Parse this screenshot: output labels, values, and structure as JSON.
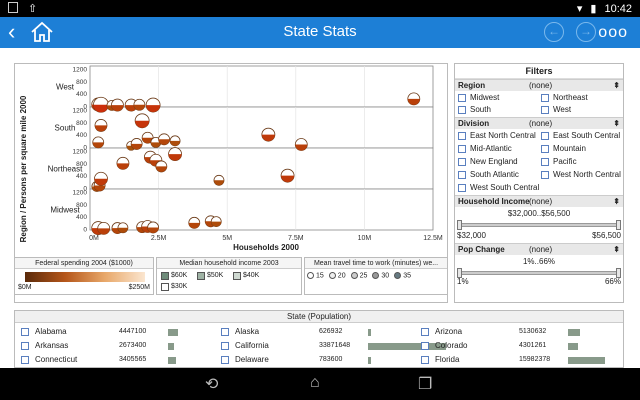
{
  "status": {
    "time": "10:42"
  },
  "appbar": {
    "title": "State Stats",
    "back": "‹",
    "prev": "←",
    "next": "→",
    "more": "ooo"
  },
  "chart": {
    "ylabel": "Region / Persons per square mile 2000",
    "xlabel": "Households 2000",
    "regions": [
      "West",
      "South",
      "Northeast",
      "Midwest"
    ],
    "yticks": [
      "1200",
      "800",
      "400",
      "0"
    ],
    "xticks": [
      "0M",
      "2.5M",
      "5M",
      "7.5M",
      "10M",
      "12.5M"
    ]
  },
  "legends": {
    "spending": {
      "title": "Federal spending 2004 ($1000)",
      "min": "$0M",
      "max": "$250M"
    },
    "income": {
      "title": "Median household income 2003",
      "items": [
        "$60K",
        "$50K",
        "$40K",
        "$30K"
      ]
    },
    "travel": {
      "title": "Mean travel time to work (minutes) we...",
      "items": [
        "15",
        "20",
        "25",
        "30",
        "35"
      ]
    }
  },
  "filters": {
    "title": "Filters",
    "region": {
      "label": "Region",
      "value": "(none)",
      "items": [
        "Midwest",
        "Northeast",
        "South",
        "West"
      ]
    },
    "division": {
      "label": "Division",
      "value": "(none)",
      "items": [
        "East North Central",
        "East South Central",
        "Mid-Atlantic",
        "Mountain",
        "New England",
        "Pacific",
        "South Atlantic",
        "West North Central",
        "West South Central"
      ]
    },
    "income": {
      "label": "Household Income",
      "value": "(none)",
      "range": "$32,000..$56,500",
      "min": "$32,000",
      "max": "$56,500"
    },
    "popchange": {
      "label": "Pop Change",
      "value": "(none)",
      "range": "1%..66%",
      "min": "1%",
      "max": "66%"
    }
  },
  "states": {
    "title": "State (Population)",
    "rows": [
      [
        {
          "name": "Alabama",
          "value": "4447100",
          "frac": 0.13
        },
        {
          "name": "Alaska",
          "value": "626932",
          "frac": 0.02
        },
        {
          "name": "Arizona",
          "value": "5130632",
          "frac": 0.15
        }
      ],
      [
        {
          "name": "Arkansas",
          "value": "2673400",
          "frac": 0.08
        },
        {
          "name": "California",
          "value": "33871648",
          "frac": 1.0
        },
        {
          "name": "Colorado",
          "value": "4301261",
          "frac": 0.13
        }
      ],
      [
        {
          "name": "Connecticut",
          "value": "3405565",
          "frac": 0.1
        },
        {
          "name": "Delaware",
          "value": "783600",
          "frac": 0.02
        },
        {
          "name": "Florida",
          "value": "15982378",
          "frac": 0.47
        }
      ]
    ]
  },
  "chart_data": {
    "type": "scatter",
    "xlabel": "Households 2000",
    "ylabel": "Region / Persons per square mile 2000",
    "xlim": [
      0,
      12500000
    ],
    "ylim": [
      0,
      1200
    ],
    "panels": [
      {
        "region": "West",
        "points": [
          [
            300000,
            50,
            0.7
          ],
          [
            400000,
            40,
            0.9
          ],
          [
            800000,
            20,
            0.4
          ],
          [
            1000000,
            30,
            0.6
          ],
          [
            1500000,
            30,
            0.6
          ],
          [
            1800000,
            40,
            0.5
          ],
          [
            2300000,
            30,
            0.8
          ],
          [
            11800000,
            230,
            0.6
          ]
        ]
      },
      {
        "region": "South",
        "points": [
          [
            300000,
            150,
            0.5
          ],
          [
            400000,
            700,
            0.6
          ],
          [
            1500000,
            40,
            0.3
          ],
          [
            1700000,
            100,
            0.5
          ],
          [
            1900000,
            850,
            0.8
          ],
          [
            2100000,
            300,
            0.5
          ],
          [
            2400000,
            150,
            0.4
          ],
          [
            2700000,
            250,
            0.5
          ],
          [
            3100000,
            200,
            0.4
          ],
          [
            6500000,
            400,
            0.7
          ],
          [
            7700000,
            80,
            0.6
          ]
        ]
      },
      {
        "region": "Northeast",
        "points": [
          [
            250000,
            50,
            0.4
          ],
          [
            350000,
            80,
            0.5
          ],
          [
            400000,
            300,
            0.7
          ],
          [
            1200000,
            800,
            0.6
          ],
          [
            2200000,
            1000,
            0.6
          ],
          [
            2400000,
            900,
            0.6
          ],
          [
            2600000,
            700,
            0.5
          ],
          [
            3100000,
            1100,
            0.7
          ],
          [
            4700000,
            250,
            0.4
          ],
          [
            7200000,
            400,
            0.7
          ]
        ]
      },
      {
        "region": "Midwest",
        "points": [
          [
            300000,
            30,
            0.7
          ],
          [
            500000,
            20,
            0.6
          ],
          [
            1000000,
            30,
            0.5
          ],
          [
            1200000,
            40,
            0.4
          ],
          [
            1900000,
            60,
            0.5
          ],
          [
            2100000,
            80,
            0.6
          ],
          [
            2300000,
            50,
            0.5
          ],
          [
            3800000,
            200,
            0.5
          ],
          [
            4400000,
            250,
            0.5
          ],
          [
            4600000,
            240,
            0.4
          ]
        ]
      }
    ]
  }
}
